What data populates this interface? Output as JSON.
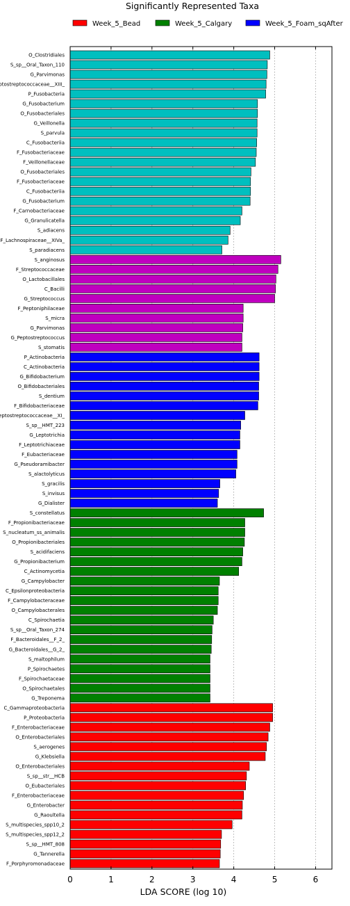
{
  "chart_data": {
    "type": "bar",
    "orientation": "horizontal",
    "title": "Significantly Represented Taxa",
    "xlabel": "LDA SCORE (log 10)",
    "xlim": [
      0,
      6.4
    ],
    "xticks": [
      0,
      1,
      2,
      3,
      4,
      5,
      6
    ],
    "grid": "vertical dotted",
    "legend_position": "top",
    "legend": [
      {
        "name": "Week_5_Bead",
        "color": "#ff0000"
      },
      {
        "name": "Week_5_Calgary",
        "color": "#008000"
      },
      {
        "name": "Week_5_Foam_sqAfter",
        "color": "#0000ff"
      }
    ],
    "bars": [
      {
        "label": "O_Clostridiales",
        "value": 4.88,
        "color": "#00bfbf"
      },
      {
        "label": "S_sp__Oral_Taxon_110",
        "value": 4.82,
        "color": "#00bfbf"
      },
      {
        "label": "G_Parvimonas",
        "value": 4.81,
        "color": "#00bfbf"
      },
      {
        "label": "F_Peptostreptococcaceae__XIII_",
        "value": 4.79,
        "color": "#00bfbf"
      },
      {
        "label": "P_Fusobacteria",
        "value": 4.78,
        "color": "#00bfbf"
      },
      {
        "label": "G_Fusobacterium",
        "value": 4.58,
        "color": "#00bfbf"
      },
      {
        "label": "O_Fusobacteriales",
        "value": 4.58,
        "color": "#00bfbf"
      },
      {
        "label": "G_Veillonella",
        "value": 4.57,
        "color": "#00bfbf"
      },
      {
        "label": "S_parvula",
        "value": 4.57,
        "color": "#00bfbf"
      },
      {
        "label": "C_Fusobacteriia",
        "value": 4.56,
        "color": "#00bfbf"
      },
      {
        "label": "F_Fusobacteriaceae",
        "value": 4.55,
        "color": "#00bfbf"
      },
      {
        "label": "F_Veillonellaceae",
        "value": 4.53,
        "color": "#00bfbf"
      },
      {
        "label": "O_Fusobacteriales",
        "value": 4.42,
        "color": "#00bfbf"
      },
      {
        "label": "F_Fusobacteriaceae",
        "value": 4.41,
        "color": "#00bfbf"
      },
      {
        "label": "C_Fusobacteriia",
        "value": 4.41,
        "color": "#00bfbf"
      },
      {
        "label": "G_Fusobacterium",
        "value": 4.4,
        "color": "#00bfbf"
      },
      {
        "label": "F_Carnobacteriaceae",
        "value": 4.2,
        "color": "#00bfbf"
      },
      {
        "label": "G_Granulicatella",
        "value": 4.16,
        "color": "#00bfbf"
      },
      {
        "label": "S_adiacens",
        "value": 3.91,
        "color": "#00bfbf"
      },
      {
        "label": "F_Lachnospiraceae__XIVa_",
        "value": 3.86,
        "color": "#00bfbf"
      },
      {
        "label": "S_paradiacens",
        "value": 3.71,
        "color": "#00bfbf"
      },
      {
        "label": "S_anginosus",
        "value": 5.15,
        "color": "#bf00bf"
      },
      {
        "label": "F_Streptococcaceae",
        "value": 5.08,
        "color": "#bf00bf"
      },
      {
        "label": "O_Lactobacillales",
        "value": 5.03,
        "color": "#bf00bf"
      },
      {
        "label": "C_Bacilli",
        "value": 5.02,
        "color": "#bf00bf"
      },
      {
        "label": "G_Streptococcus",
        "value": 5.0,
        "color": "#bf00bf"
      },
      {
        "label": "F_Peptoniphilaceae",
        "value": 4.23,
        "color": "#bf00bf"
      },
      {
        "label": "S_micra",
        "value": 4.23,
        "color": "#bf00bf"
      },
      {
        "label": "G_Parvimonas",
        "value": 4.22,
        "color": "#bf00bf"
      },
      {
        "label": "G_Peptostreptococcus",
        "value": 4.2,
        "color": "#bf00bf"
      },
      {
        "label": "S_stomatis",
        "value": 4.2,
        "color": "#bf00bf"
      },
      {
        "label": "P_Actinobacteria",
        "value": 4.62,
        "color": "#0000ff"
      },
      {
        "label": "C_Actinobacteria",
        "value": 4.62,
        "color": "#0000ff"
      },
      {
        "label": "G_Bifidobacterium",
        "value": 4.62,
        "color": "#0000ff"
      },
      {
        "label": "O_Bifidobacteriales",
        "value": 4.61,
        "color": "#0000ff"
      },
      {
        "label": "S_dentium",
        "value": 4.61,
        "color": "#0000ff"
      },
      {
        "label": "F_Bifidobacteriaceae",
        "value": 4.59,
        "color": "#0000ff"
      },
      {
        "label": "F_Peptostreptococcaceae__XI_",
        "value": 4.27,
        "color": "#0000ff"
      },
      {
        "label": "S_sp__HMT_223",
        "value": 4.17,
        "color": "#0000ff"
      },
      {
        "label": "G_Leptotrichia",
        "value": 4.15,
        "color": "#0000ff"
      },
      {
        "label": "F_Leptotrichiaceae",
        "value": 4.15,
        "color": "#0000ff"
      },
      {
        "label": "F_Eubacteriaceae",
        "value": 4.08,
        "color": "#0000ff"
      },
      {
        "label": "G_Pseudoramibacter",
        "value": 4.08,
        "color": "#0000ff"
      },
      {
        "label": "S_alactolyticus",
        "value": 4.05,
        "color": "#0000ff"
      },
      {
        "label": "S_gracilis",
        "value": 3.66,
        "color": "#0000ff"
      },
      {
        "label": "S_invisus",
        "value": 3.63,
        "color": "#0000ff"
      },
      {
        "label": "G_Dialister",
        "value": 3.6,
        "color": "#0000ff"
      },
      {
        "label": "S_constellatus",
        "value": 4.73,
        "color": "#008000"
      },
      {
        "label": "F_Propionibacteriaceae",
        "value": 4.27,
        "color": "#008000"
      },
      {
        "label": "S_nucleatum_ss_animalis",
        "value": 4.27,
        "color": "#008000"
      },
      {
        "label": "O_Propionibacteriales",
        "value": 4.26,
        "color": "#008000"
      },
      {
        "label": "S_acidifaciens",
        "value": 4.22,
        "color": "#008000"
      },
      {
        "label": "G_Propionibacterium",
        "value": 4.2,
        "color": "#008000"
      },
      {
        "label": "C_Actinomycetia",
        "value": 4.12,
        "color": "#008000"
      },
      {
        "label": "G_Campylobacter",
        "value": 3.65,
        "color": "#008000"
      },
      {
        "label": "C_Epsilonproteobacteria",
        "value": 3.62,
        "color": "#008000"
      },
      {
        "label": "F_Campylobacteraceae",
        "value": 3.62,
        "color": "#008000"
      },
      {
        "label": "O_Campylobacterales",
        "value": 3.6,
        "color": "#008000"
      },
      {
        "label": "C_Spirochaetia",
        "value": 3.5,
        "color": "#008000"
      },
      {
        "label": "S_sp__Oral_Taxon_274",
        "value": 3.47,
        "color": "#008000"
      },
      {
        "label": "F_Bacteroidales__F_2_",
        "value": 3.46,
        "color": "#008000"
      },
      {
        "label": "G_Bacteroidales__G_2_",
        "value": 3.45,
        "color": "#008000"
      },
      {
        "label": "S_maltophilum",
        "value": 3.42,
        "color": "#008000"
      },
      {
        "label": "P_Spirochaetes",
        "value": 3.42,
        "color": "#008000"
      },
      {
        "label": "F_Spirochaetaceae",
        "value": 3.42,
        "color": "#008000"
      },
      {
        "label": "O_Spirochaetales",
        "value": 3.42,
        "color": "#008000"
      },
      {
        "label": "G_Treponema",
        "value": 3.42,
        "color": "#008000"
      },
      {
        "label": "C_Gammaproteobacteria",
        "value": 4.95,
        "color": "#ff0000"
      },
      {
        "label": "P_Proteobacteria",
        "value": 4.95,
        "color": "#ff0000"
      },
      {
        "label": "F_Enterobacteriaceae",
        "value": 4.88,
        "color": "#ff0000"
      },
      {
        "label": "O_Enterobacteriales",
        "value": 4.84,
        "color": "#ff0000"
      },
      {
        "label": "S_aerogenes",
        "value": 4.8,
        "color": "#ff0000"
      },
      {
        "label": "G_Klebsiella",
        "value": 4.77,
        "color": "#ff0000"
      },
      {
        "label": "O_Enterobacteriales",
        "value": 4.38,
        "color": "#ff0000"
      },
      {
        "label": "S_sp__str__HCB",
        "value": 4.31,
        "color": "#ff0000"
      },
      {
        "label": "O_Eubacteriales",
        "value": 4.29,
        "color": "#ff0000"
      },
      {
        "label": "F_Enterobacteriaceae",
        "value": 4.24,
        "color": "#ff0000"
      },
      {
        "label": "G_Enterobacter",
        "value": 4.21,
        "color": "#ff0000"
      },
      {
        "label": "G_Raoultella",
        "value": 4.2,
        "color": "#ff0000"
      },
      {
        "label": "S_multispecies_spp10_2",
        "value": 3.96,
        "color": "#ff0000"
      },
      {
        "label": "S_multispecies_spp12_2",
        "value": 3.7,
        "color": "#ff0000"
      },
      {
        "label": "S_sp__HMT_808",
        "value": 3.68,
        "color": "#ff0000"
      },
      {
        "label": "G_Tannerella",
        "value": 3.67,
        "color": "#ff0000"
      },
      {
        "label": "F_Porphyromonadaceae",
        "value": 3.65,
        "color": "#ff0000"
      }
    ]
  }
}
